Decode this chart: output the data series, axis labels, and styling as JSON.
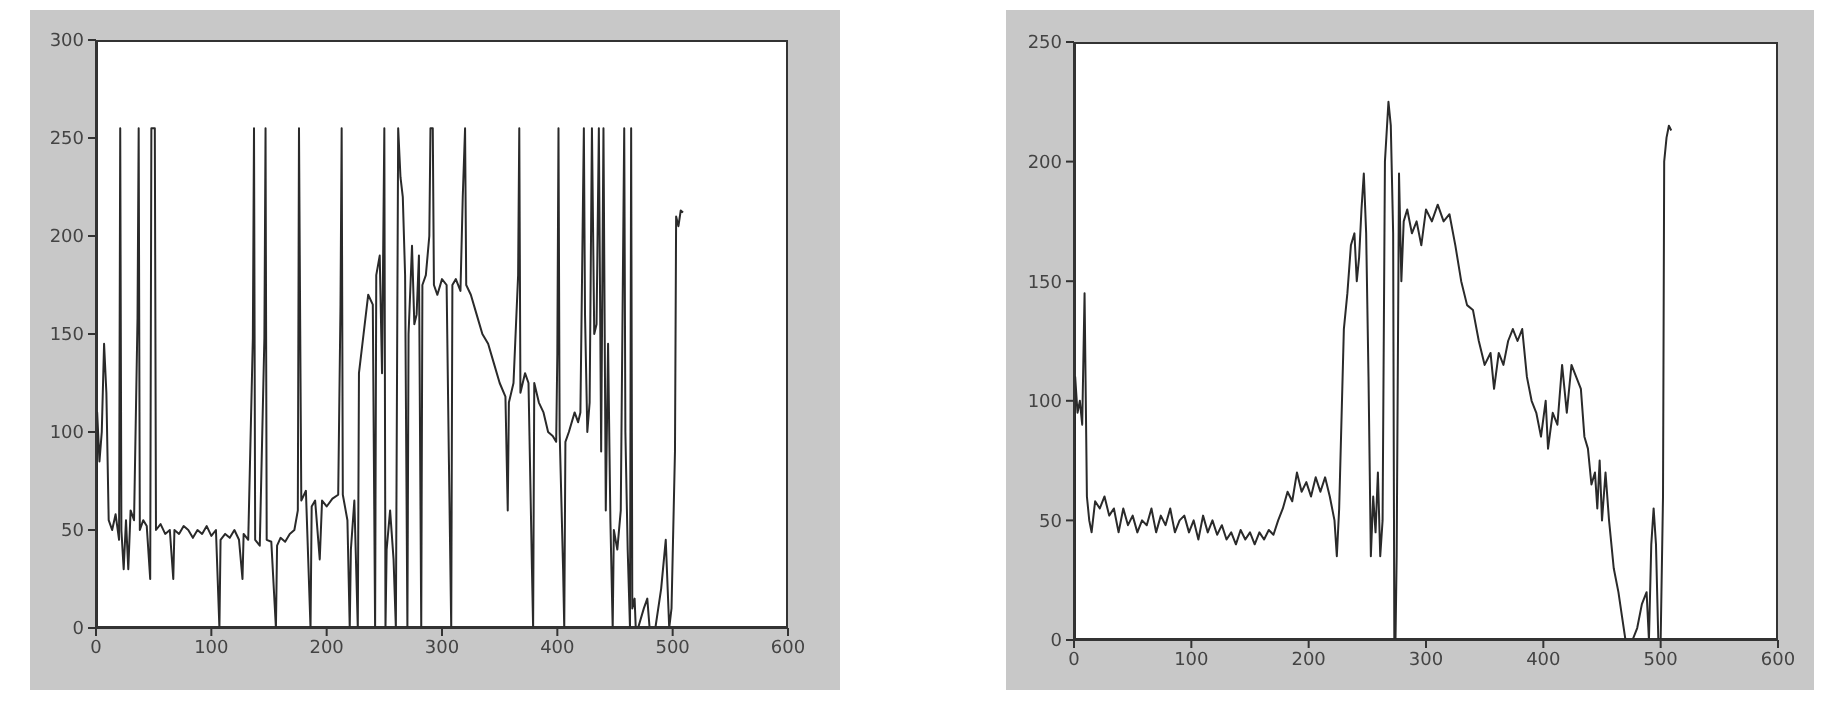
{
  "chart_data": [
    {
      "type": "line",
      "xlim": [
        0,
        600
      ],
      "xticks": [
        0,
        100,
        200,
        300,
        400,
        500,
        600
      ],
      "ylim": [
        0,
        300
      ],
      "yticks": [
        0,
        50,
        100,
        150,
        200,
        250,
        300
      ],
      "marker": "none",
      "x": [
        0,
        1,
        3,
        5,
        7,
        9,
        11,
        14,
        17,
        20,
        21,
        22,
        24,
        26,
        28,
        30,
        33,
        36,
        37,
        38,
        41,
        44,
        47,
        48,
        50,
        51,
        52,
        56,
        60,
        64,
        67,
        68,
        72,
        76,
        80,
        84,
        88,
        92,
        96,
        100,
        104,
        107,
        108,
        112,
        116,
        120,
        124,
        127,
        128,
        132,
        136,
        137,
        138,
        142,
        146,
        147,
        148,
        152,
        156,
        157,
        160,
        164,
        168,
        172,
        175,
        176,
        177,
        178,
        182,
        186,
        187,
        190,
        194,
        196,
        200,
        205,
        210,
        212,
        213,
        214,
        218,
        220,
        221,
        224,
        227,
        228,
        232,
        236,
        240,
        242,
        243,
        246,
        248,
        250,
        251,
        252,
        255,
        258,
        260,
        262,
        264,
        266,
        268,
        270,
        271,
        274,
        276,
        278,
        280,
        282,
        283,
        286,
        289,
        290,
        292,
        293,
        296,
        300,
        304,
        306,
        308,
        309,
        312,
        316,
        318,
        320,
        321,
        325,
        330,
        335,
        340,
        345,
        350,
        355,
        357,
        358,
        362,
        366,
        367,
        368,
        372,
        375,
        378,
        379,
        380,
        384,
        388,
        392,
        396,
        399,
        400,
        401,
        402,
        405,
        406,
        407,
        410,
        415,
        418,
        420,
        423,
        424,
        426,
        428,
        430,
        432,
        434,
        436,
        438,
        440,
        442,
        444,
        446,
        448,
        449,
        452,
        455,
        458,
        459,
        461,
        463,
        464,
        465,
        467,
        468,
        470,
        475,
        478,
        480,
        485,
        490,
        494,
        497,
        499,
        502,
        503,
        505,
        507,
        509
      ],
      "series": [
        {
          "color": "#2a2a2a",
          "values": [
            0,
            110,
            85,
            100,
            145,
            120,
            55,
            50,
            58,
            45,
            255,
            50,
            30,
            55,
            30,
            60,
            55,
            158,
            255,
            50,
            55,
            52,
            25,
            255,
            255,
            255,
            50,
            53,
            48,
            50,
            25,
            50,
            48,
            52,
            50,
            46,
            50,
            48,
            52,
            47,
            50,
            0,
            45,
            48,
            46,
            50,
            45,
            25,
            48,
            45,
            148,
            255,
            45,
            42,
            148,
            255,
            45,
            44,
            0,
            42,
            46,
            44,
            48,
            50,
            60,
            255,
            158,
            65,
            70,
            0,
            62,
            65,
            35,
            65,
            62,
            66,
            68,
            165,
            255,
            68,
            55,
            0,
            40,
            65,
            0,
            130,
            150,
            170,
            165,
            0,
            180,
            190,
            130,
            255,
            0,
            40,
            60,
            35,
            0,
            255,
            230,
            220,
            180,
            0,
            150,
            195,
            155,
            160,
            190,
            0,
            175,
            180,
            200,
            255,
            255,
            175,
            170,
            178,
            175,
            85,
            0,
            175,
            178,
            172,
            220,
            255,
            175,
            170,
            160,
            150,
            145,
            135,
            125,
            118,
            60,
            115,
            125,
            180,
            255,
            120,
            130,
            125,
            30,
            0,
            125,
            115,
            110,
            100,
            98,
            95,
            140,
            255,
            100,
            30,
            0,
            95,
            100,
            110,
            105,
            110,
            255,
            160,
            100,
            115,
            255,
            150,
            155,
            255,
            90,
            255,
            60,
            145,
            55,
            0,
            50,
            40,
            60,
            255,
            100,
            40,
            0,
            255,
            10,
            15,
            0,
            0,
            10,
            15,
            0,
            0,
            20,
            45,
            0,
            10,
            90,
            210,
            205,
            213,
            212
          ]
        }
      ]
    },
    {
      "type": "line",
      "xlim": [
        0,
        600
      ],
      "xticks": [
        0,
        100,
        200,
        300,
        400,
        500,
        600
      ],
      "ylim": [
        0,
        250
      ],
      "yticks": [
        0,
        50,
        100,
        150,
        200,
        250
      ],
      "marker": "none",
      "x": [
        0,
        1,
        3,
        5,
        7,
        9,
        11,
        13,
        15,
        18,
        22,
        26,
        30,
        34,
        38,
        42,
        46,
        50,
        54,
        58,
        62,
        66,
        70,
        74,
        78,
        82,
        86,
        90,
        94,
        98,
        102,
        106,
        110,
        114,
        118,
        122,
        126,
        130,
        134,
        138,
        142,
        146,
        150,
        154,
        158,
        162,
        166,
        170,
        174,
        178,
        182,
        186,
        190,
        194,
        198,
        202,
        206,
        210,
        214,
        218,
        222,
        224,
        226,
        230,
        233,
        236,
        239,
        241,
        243,
        245,
        247,
        249,
        251,
        253,
        255,
        257,
        259,
        261,
        263,
        265,
        268,
        270,
        272,
        273,
        274,
        275,
        277,
        279,
        281,
        284,
        288,
        292,
        296,
        300,
        305,
        310,
        315,
        320,
        325,
        330,
        335,
        340,
        345,
        350,
        355,
        358,
        362,
        366,
        370,
        374,
        378,
        382,
        386,
        390,
        394,
        398,
        402,
        404,
        408,
        412,
        416,
        420,
        424,
        428,
        432,
        435,
        438,
        441,
        444,
        446,
        448,
        450,
        453,
        456,
        460,
        464,
        467,
        470,
        476,
        480,
        484,
        488,
        490,
        492,
        494,
        496,
        498,
        500,
        502,
        503,
        505,
        507,
        509
      ],
      "series": [
        {
          "color": "#2a2a2a",
          "values": [
            0,
            110,
            95,
            100,
            90,
            145,
            60,
            50,
            45,
            58,
            55,
            60,
            52,
            55,
            45,
            55,
            48,
            52,
            45,
            50,
            48,
            55,
            45,
            52,
            48,
            55,
            45,
            50,
            52,
            45,
            50,
            42,
            52,
            45,
            50,
            44,
            48,
            42,
            45,
            40,
            46,
            42,
            45,
            40,
            45,
            42,
            46,
            44,
            50,
            55,
            62,
            58,
            70,
            62,
            66,
            60,
            68,
            62,
            68,
            60,
            50,
            35,
            55,
            130,
            145,
            165,
            170,
            150,
            160,
            180,
            195,
            170,
            110,
            35,
            60,
            45,
            70,
            35,
            50,
            200,
            225,
            215,
            170,
            0,
            0,
            35,
            195,
            150,
            175,
            180,
            170,
            175,
            165,
            180,
            175,
            182,
            175,
            178,
            165,
            150,
            140,
            138,
            125,
            115,
            120,
            105,
            120,
            115,
            125,
            130,
            125,
            130,
            110,
            100,
            95,
            85,
            100,
            80,
            95,
            90,
            115,
            95,
            115,
            110,
            105,
            85,
            80,
            65,
            70,
            55,
            75,
            50,
            70,
            50,
            30,
            20,
            10,
            0,
            0,
            5,
            15,
            20,
            0,
            40,
            55,
            40,
            0,
            0,
            60,
            200,
            210,
            215,
            213
          ]
        }
      ]
    }
  ]
}
